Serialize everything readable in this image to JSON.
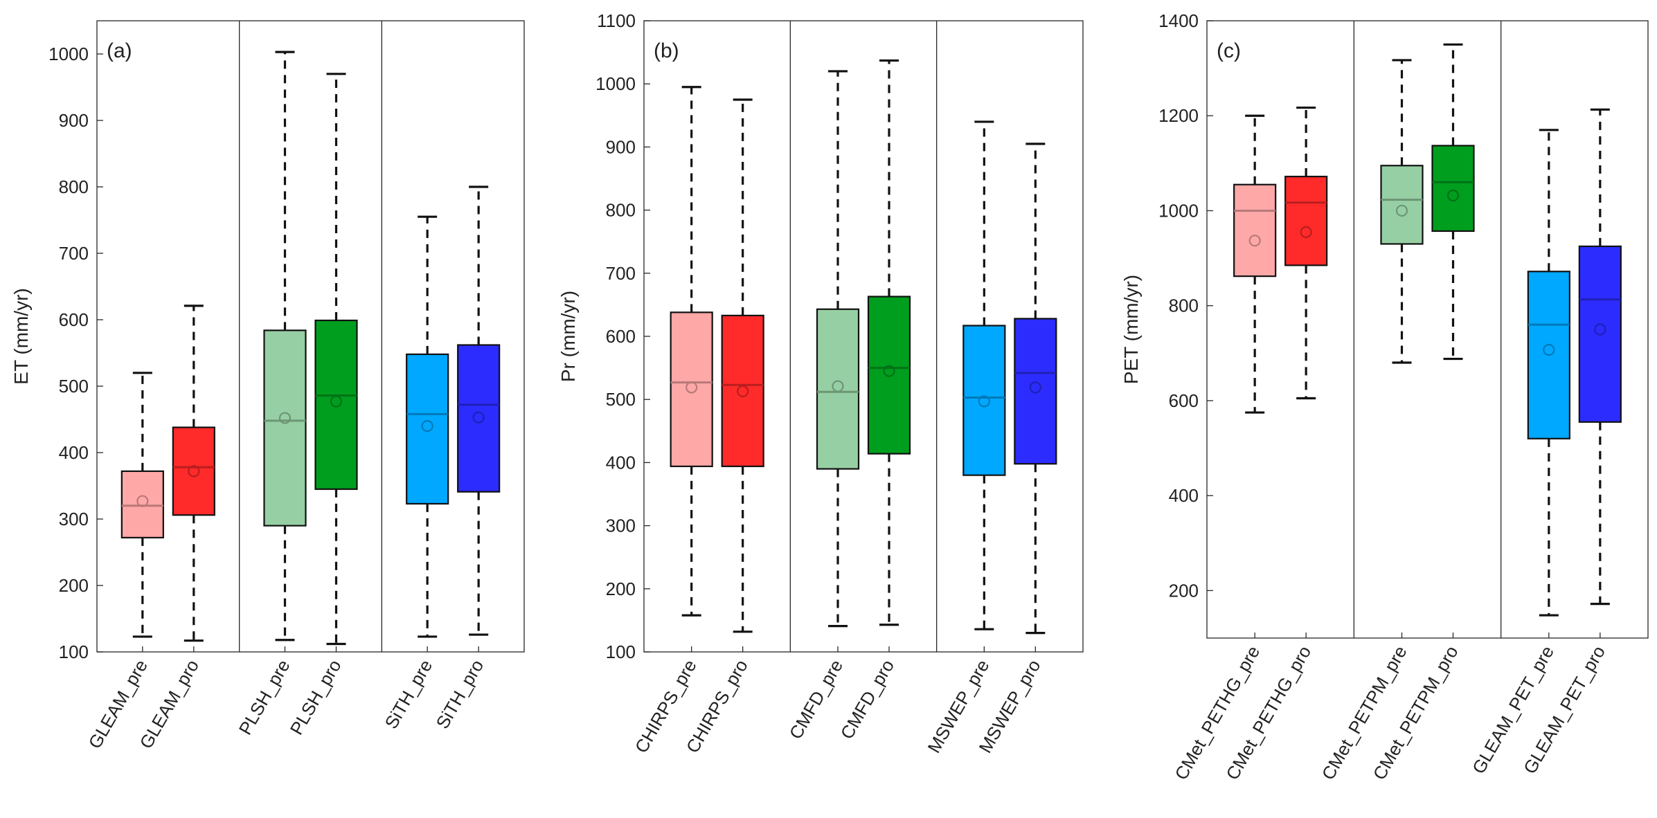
{
  "chart_data": [
    {
      "type": "box",
      "panel_label": "(a)",
      "ylabel": "ET (mm/yr)",
      "ylim": [
        100,
        1050
      ],
      "yticks": [
        100,
        200,
        300,
        400,
        500,
        600,
        700,
        800,
        900,
        1000
      ],
      "groups": [
        {
          "boxes": [
            {
              "label": "GLEAM_pre",
              "color": "#FFA8A8",
              "whisker_low": 123,
              "q1": 272,
              "median": 320,
              "q3": 372,
              "whisker_high": 520,
              "mean": 327
            },
            {
              "label": "GLEAM_pro",
              "color": "#FF2A2A",
              "whisker_low": 117,
              "q1": 306,
              "median": 378,
              "q3": 438,
              "whisker_high": 621,
              "mean": 372
            }
          ]
        },
        {
          "boxes": [
            {
              "label": "PLSH_pre",
              "color": "#96CFA3",
              "whisker_low": 118,
              "q1": 290,
              "median": 448,
              "q3": 584,
              "whisker_high": 1003,
              "mean": 452
            },
            {
              "label": "PLSH_pro",
              "color": "#009E1E",
              "whisker_low": 112,
              "q1": 345,
              "median": 486,
              "q3": 599,
              "whisker_high": 970,
              "mean": 477
            }
          ]
        },
        {
          "boxes": [
            {
              "label": "SiTH_pre",
              "color": "#00A8FF",
              "whisker_low": 123,
              "q1": 323,
              "median": 458,
              "q3": 548,
              "whisker_high": 755,
              "mean": 440
            },
            {
              "label": "SiTH_pro",
              "color": "#2C2CFF",
              "whisker_low": 126,
              "q1": 341,
              "median": 472,
              "q3": 562,
              "whisker_high": 800,
              "mean": 453
            }
          ]
        }
      ]
    },
    {
      "type": "box",
      "panel_label": "(b)",
      "ylabel": "Pr (mm/yr)",
      "ylim": [
        100,
        1100
      ],
      "yticks": [
        100,
        200,
        300,
        400,
        500,
        600,
        700,
        800,
        900,
        1000,
        1100
      ],
      "groups": [
        {
          "boxes": [
            {
              "label": "CHIRPS_pre",
              "color": "#FFA8A8",
              "whisker_low": 158,
              "q1": 394,
              "median": 527,
              "q3": 638,
              "whisker_high": 995,
              "mean": 519
            },
            {
              "label": "CHIRPS_pro",
              "color": "#FF2A2A",
              "whisker_low": 132,
              "q1": 394,
              "median": 523,
              "q3": 633,
              "whisker_high": 975,
              "mean": 513
            }
          ]
        },
        {
          "boxes": [
            {
              "label": "CMFD_pre",
              "color": "#96CFA3",
              "whisker_low": 141,
              "q1": 390,
              "median": 512,
              "q3": 643,
              "whisker_high": 1020,
              "mean": 521
            },
            {
              "label": "CMFD_pro",
              "color": "#009E1E",
              "whisker_low": 143,
              "q1": 414,
              "median": 550,
              "q3": 663,
              "whisker_high": 1037,
              "mean": 545
            }
          ]
        },
        {
          "boxes": [
            {
              "label": "MSWEP_pre",
              "color": "#00A8FF",
              "whisker_low": 136,
              "q1": 380,
              "median": 503,
              "q3": 617,
              "whisker_high": 940,
              "mean": 497
            },
            {
              "label": "MSWEP_pro",
              "color": "#2C2CFF",
              "whisker_low": 130,
              "q1": 398,
              "median": 542,
              "q3": 628,
              "whisker_high": 905,
              "mean": 519
            }
          ]
        }
      ]
    },
    {
      "type": "box",
      "panel_label": "(c)",
      "ylabel": "PET (mm/yr)",
      "ylim": [
        100,
        1400
      ],
      "yticks": [
        200,
        400,
        600,
        800,
        1000,
        1200,
        1400
      ],
      "groups": [
        {
          "boxes": [
            {
              "label": "CMet_PETHG_pre",
              "color": "#FFA8A8",
              "whisker_low": 575,
              "q1": 862,
              "median": 1000,
              "q3": 1055,
              "whisker_high": 1200,
              "mean": 937
            },
            {
              "label": "CMet_PETHG_pro",
              "color": "#FF2A2A",
              "whisker_low": 605,
              "q1": 885,
              "median": 1017,
              "q3": 1072,
              "whisker_high": 1217,
              "mean": 955
            }
          ]
        },
        {
          "boxes": [
            {
              "label": "CMet_PETPM_pre",
              "color": "#96CFA3",
              "whisker_low": 680,
              "q1": 930,
              "median": 1023,
              "q3": 1095,
              "whisker_high": 1317,
              "mean": 1000
            },
            {
              "label": "CMet_PETPM_pro",
              "color": "#009E1E",
              "whisker_low": 688,
              "q1": 957,
              "median": 1060,
              "q3": 1137,
              "whisker_high": 1350,
              "mean": 1032
            }
          ]
        },
        {
          "boxes": [
            {
              "label": "GLEAM_PET_pre",
              "color": "#00A8FF",
              "whisker_low": 148,
              "q1": 520,
              "median": 760,
              "q3": 872,
              "whisker_high": 1170,
              "mean": 707
            },
            {
              "label": "GLEAM_PET_pro",
              "color": "#2C2CFF",
              "whisker_low": 172,
              "q1": 555,
              "median": 813,
              "q3": 925,
              "whisker_high": 1213,
              "mean": 750
            }
          ]
        }
      ]
    }
  ]
}
